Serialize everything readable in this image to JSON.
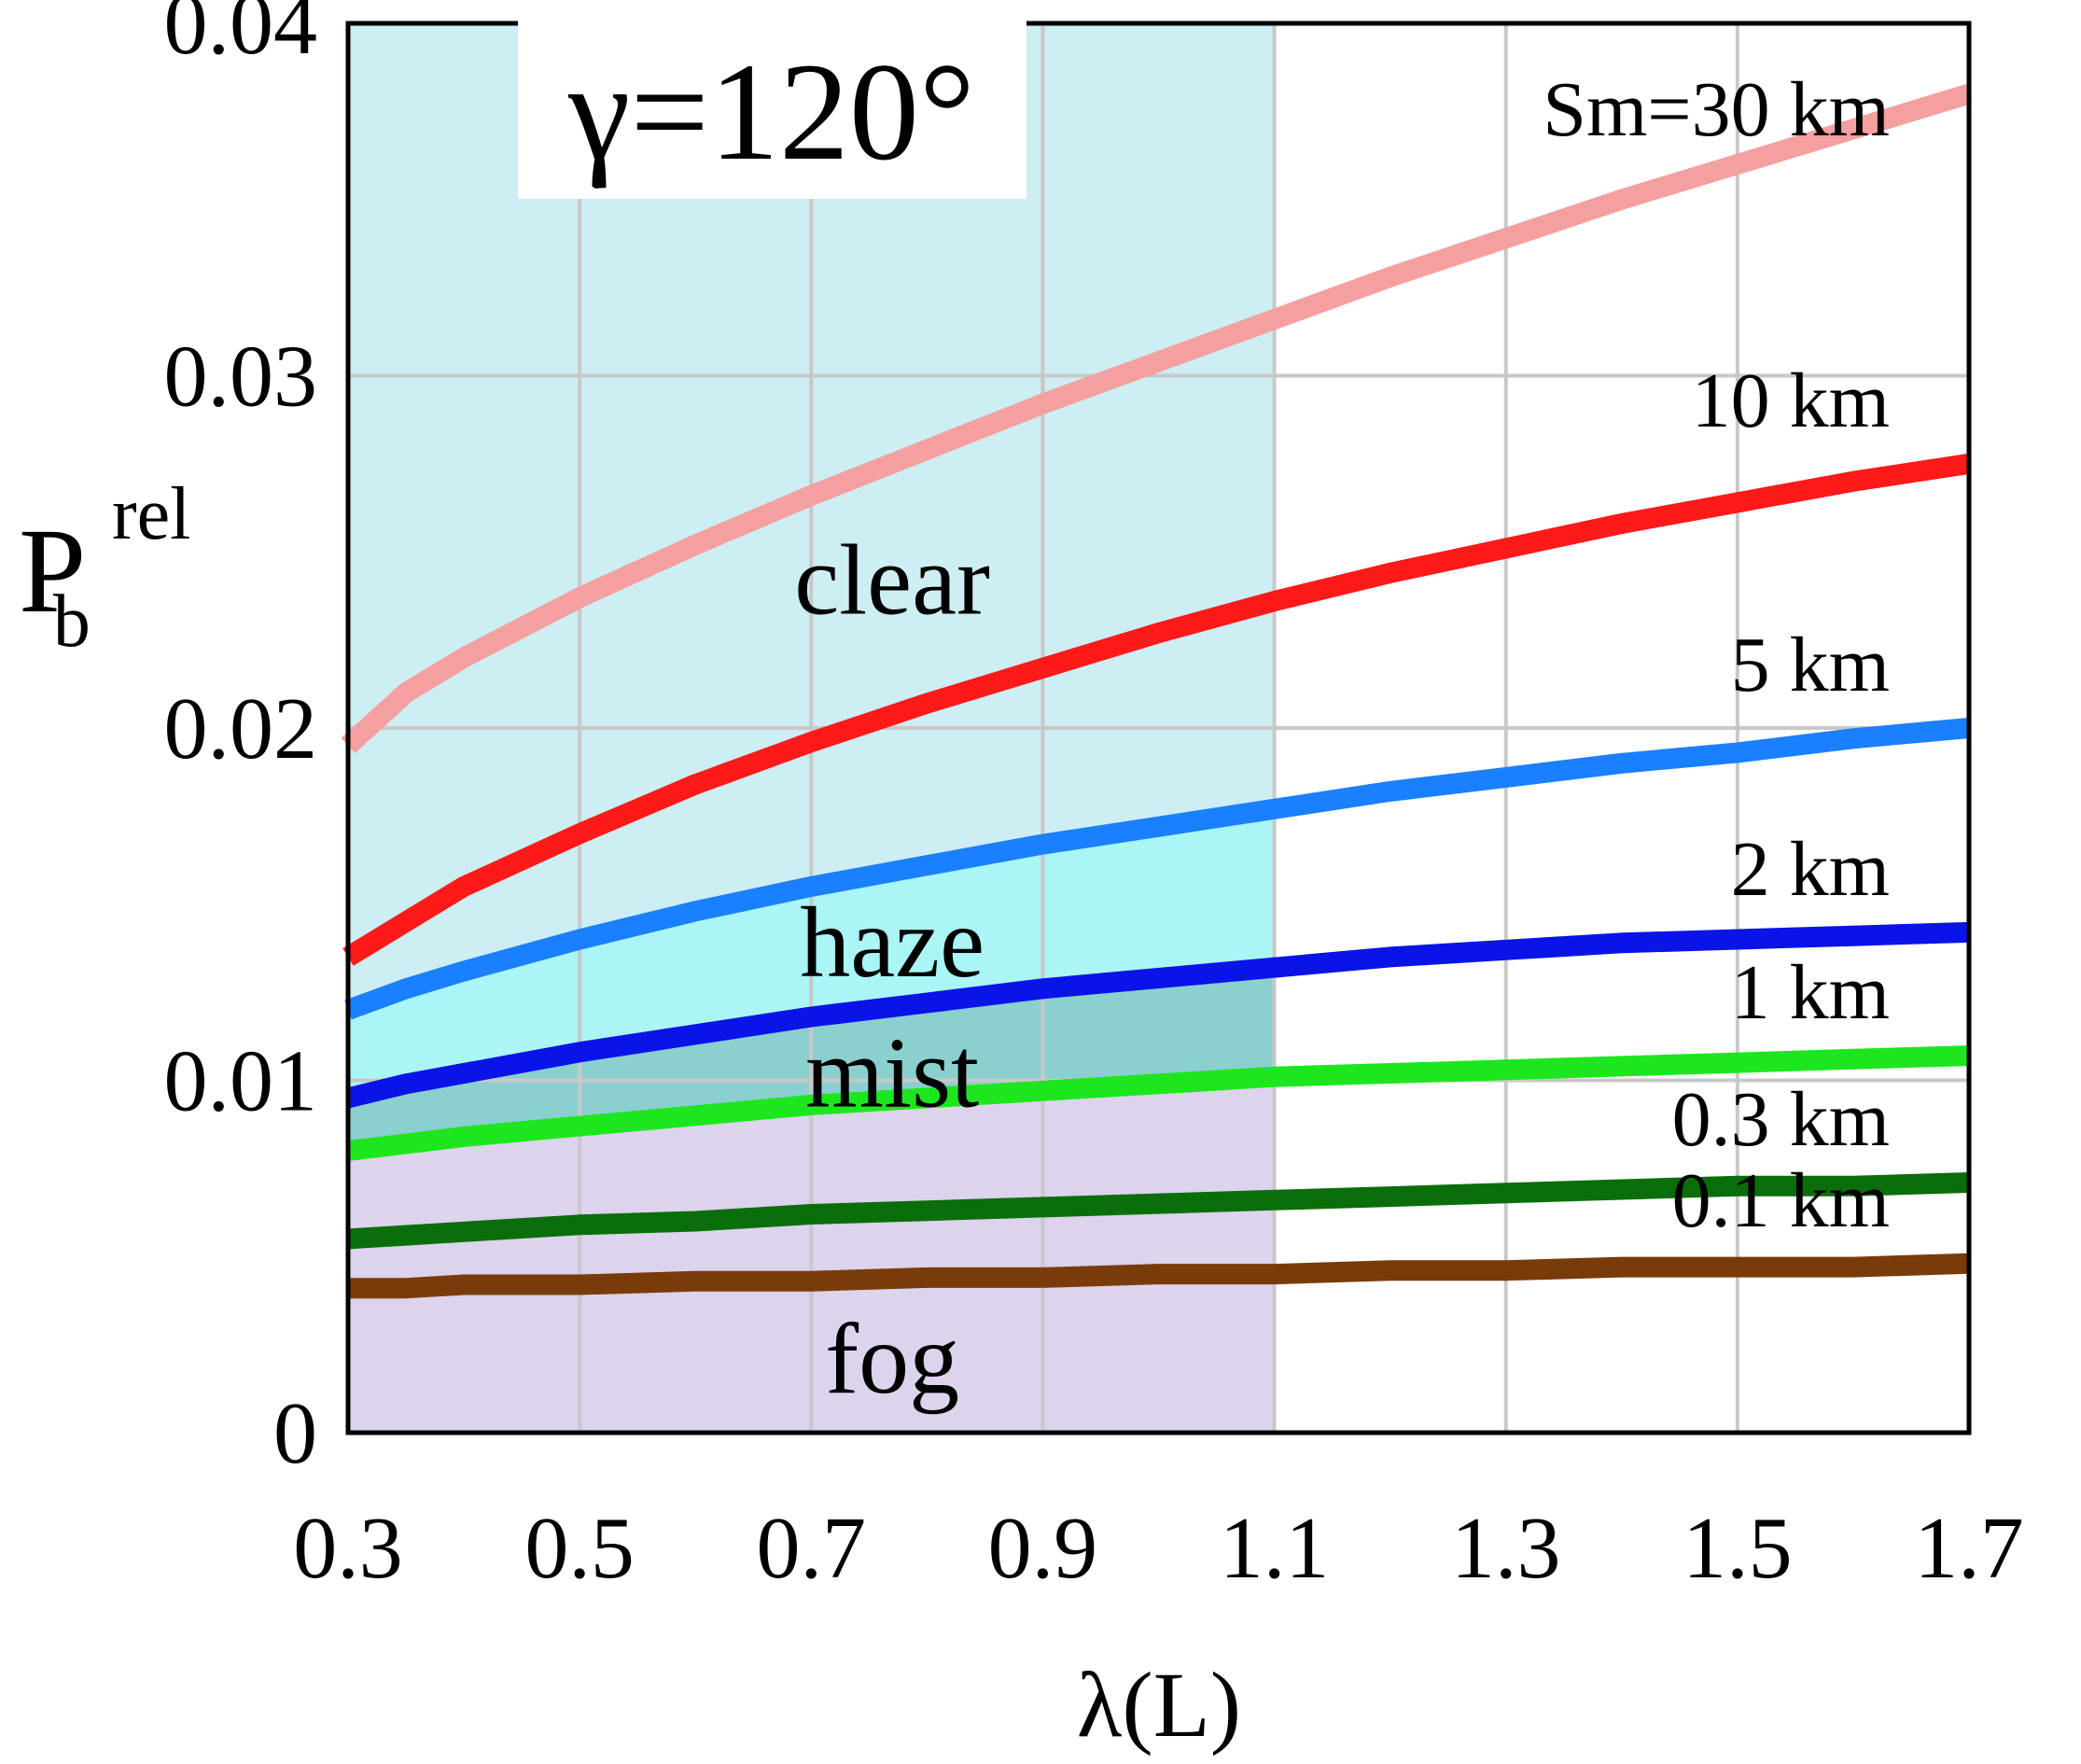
{
  "chart_data": {
    "type": "line",
    "title": "",
    "annotation_gamma": "γ=120°",
    "xlabel": "λ(L)",
    "ylabel": {
      "main": "P",
      "sub": "b",
      "sup": "rel"
    },
    "xlim": [
      0.3,
      1.7
    ],
    "ylim": [
      0,
      0.04
    ],
    "x_ticks": [
      "0.3",
      "0.5",
      "0.7",
      "0.9",
      "1.1",
      "1.3",
      "1.5",
      "1.7"
    ],
    "y_ticks": [
      "0",
      "0.01",
      "0.02",
      "0.03",
      "0.04"
    ],
    "grid": true,
    "x": [
      0.3,
      0.35,
      0.4,
      0.5,
      0.6,
      0.7,
      0.8,
      0.9,
      1.0,
      1.1,
      1.2,
      1.3,
      1.4,
      1.5,
      1.6,
      1.7
    ],
    "series": [
      {
        "name": "Sm=30 km",
        "label": "Sm=30 km",
        "color": "#f4a0a0",
        "values": [
          0.0195,
          0.021,
          0.022,
          0.0237,
          0.0252,
          0.0266,
          0.0279,
          0.0292,
          0.0304,
          0.0316,
          0.0328,
          0.0339,
          0.035,
          0.036,
          0.037,
          0.038
        ]
      },
      {
        "name": "10 km",
        "label": "10 km",
        "color": "#ff1a1a",
        "values": [
          0.0135,
          0.0145,
          0.0155,
          0.017,
          0.0184,
          0.0196,
          0.0207,
          0.0217,
          0.0227,
          0.0236,
          0.0244,
          0.0251,
          0.0258,
          0.0264,
          0.027,
          0.0275
        ]
      },
      {
        "name": "5 km",
        "label": "5 km",
        "color": "#1a80ff",
        "values": [
          0.012,
          0.0126,
          0.0131,
          0.014,
          0.0148,
          0.0155,
          0.0161,
          0.0167,
          0.0172,
          0.0177,
          0.0182,
          0.0186,
          0.019,
          0.0193,
          0.0197,
          0.02
        ]
      },
      {
        "name": "2 km",
        "label": "2 km",
        "color": "#0a14e6",
        "values": [
          0.0095,
          0.0099,
          0.0102,
          0.0108,
          0.0113,
          0.0118,
          0.0122,
          0.0126,
          0.0129,
          0.0132,
          0.0135,
          0.0137,
          0.0139,
          0.014,
          0.0141,
          0.0142
        ]
      },
      {
        "name": "1 km",
        "label": "1 km",
        "color": "#1ee61e",
        "values": [
          0.008,
          0.0082,
          0.0084,
          0.0087,
          0.009,
          0.0093,
          0.0095,
          0.0097,
          0.0099,
          0.0101,
          0.0102,
          0.0103,
          0.0104,
          0.0105,
          0.0106,
          0.0107
        ]
      },
      {
        "name": "0.3 km",
        "label": "0.3 km",
        "color": "#0a6e0a",
        "values": [
          0.0055,
          0.0056,
          0.0057,
          0.0059,
          0.006,
          0.0062,
          0.0063,
          0.0064,
          0.0065,
          0.0066,
          0.0067,
          0.0068,
          0.0069,
          0.007,
          0.007,
          0.0071
        ]
      },
      {
        "name": "0.1 km",
        "label": "0.1 km",
        "color": "#7a3b0a",
        "values": [
          0.0041,
          0.0041,
          0.0042,
          0.0042,
          0.0043,
          0.0043,
          0.0044,
          0.0044,
          0.0045,
          0.0045,
          0.0046,
          0.0046,
          0.0047,
          0.0047,
          0.0047,
          0.0048
        ]
      }
    ],
    "regions": [
      {
        "label": "clear",
        "color": "#cdeef2"
      },
      {
        "label": "haze",
        "color": "#aaf5f5"
      },
      {
        "label": "mist",
        "color": "#8ccfcf"
      },
      {
        "label": "fog",
        "color": "#dcd3ec"
      }
    ]
  }
}
